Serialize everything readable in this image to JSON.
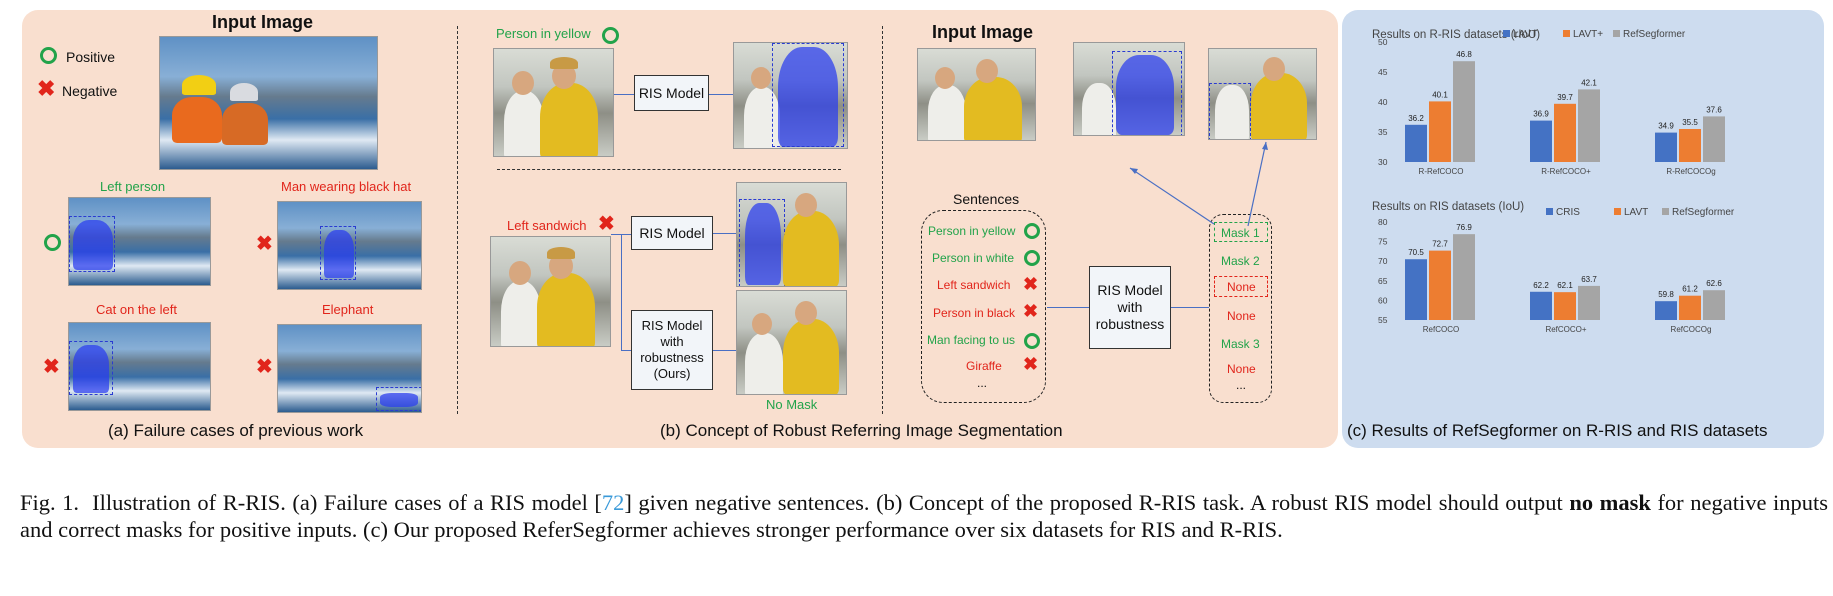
{
  "panel_a": {
    "title": "Input Image",
    "legend_positive": "Positive",
    "legend_negative": "Negative",
    "examples": [
      "Left person",
      "Man wearing black hat",
      "Cat on the left",
      "Elephant"
    ],
    "caption": "(a) Failure cases of previous work"
  },
  "panel_b": {
    "title": "Input Image",
    "top_query": "Person in yellow",
    "bottom_query": "Left sandwich",
    "ris_model": "RIS Model",
    "robust_model_lines": [
      "RIS Model",
      "with",
      "robustness",
      "(Ours)"
    ],
    "no_mask": "No Mask",
    "sentences_title": "Sentences",
    "sentences": [
      {
        "text": "Person in yellow",
        "positive": true
      },
      {
        "text": "Person in white",
        "positive": true
      },
      {
        "text": "Left sandwich",
        "positive": false
      },
      {
        "text": "Person in black",
        "positive": false
      },
      {
        "text": "Man facing to us",
        "positive": true
      },
      {
        "text": "Giraffe",
        "positive": false
      }
    ],
    "ellipsis": "...",
    "robust_model2_lines": [
      "RIS Model",
      "with",
      "robustness"
    ],
    "outputs": [
      {
        "text": "Mask 1",
        "positive": true
      },
      {
        "text": "Mask 2",
        "positive": true
      },
      {
        "text": "None",
        "positive": false
      },
      {
        "text": "None",
        "positive": false
      },
      {
        "text": "Mask 3",
        "positive": true
      },
      {
        "text": "None",
        "positive": false
      }
    ],
    "caption": "(b) Concept of Robust Referring Image Segmentation"
  },
  "panel_c": {
    "caption": "(c) Results of RefSegformer on R-RIS and RIS datasets"
  },
  "colors": {
    "blue": "#4472c4",
    "orange": "#ed7d31",
    "gray": "#a5a5a5"
  },
  "chart_data": [
    {
      "type": "bar",
      "title": "Results on R-RIS datasets (rIoU)",
      "categories": [
        "R-RefCOCO",
        "R-RefCOCO+",
        "R-RefCOCOg"
      ],
      "series": [
        {
          "name": "LAVT",
          "values": [
            36.2,
            36.9,
            34.9
          ]
        },
        {
          "name": "LAVT+",
          "values": [
            40.1,
            39.7,
            35.5
          ]
        },
        {
          "name": "RefSegformer",
          "values": [
            46.8,
            42.1,
            37.6
          ]
        }
      ],
      "yticks": [
        30,
        35,
        40,
        45,
        50
      ],
      "ylim": [
        30,
        50
      ]
    },
    {
      "type": "bar",
      "title": "Results on RIS datasets (IoU)",
      "categories": [
        "RefCOCO",
        "RefCOCO+",
        "RefCOCOg"
      ],
      "series": [
        {
          "name": "CRIS",
          "values": [
            70.5,
            62.2,
            59.8
          ]
        },
        {
          "name": "LAVT",
          "values": [
            72.7,
            62.1,
            61.2
          ]
        },
        {
          "name": "RefSegformer",
          "values": [
            76.9,
            63.7,
            62.6
          ]
        }
      ],
      "yticks": [
        55,
        60,
        65,
        70,
        75,
        80
      ],
      "ylim": [
        55,
        80
      ]
    }
  ],
  "caption": {
    "fig_label": "Fig. 1.",
    "text_1": "Illustration of R-RIS. (a) Failure cases of a RIS model [",
    "ref": "72",
    "text_2": "] given negative sentences. (b) Concept of the proposed R-RIS task. A robust RIS model should output ",
    "bold": "no mask",
    "text_3": " for negative inputs and correct masks for positive inputs. (c) Our proposed ReferSegformer achieves stronger performance over six datasets for RIS and R-RIS."
  }
}
